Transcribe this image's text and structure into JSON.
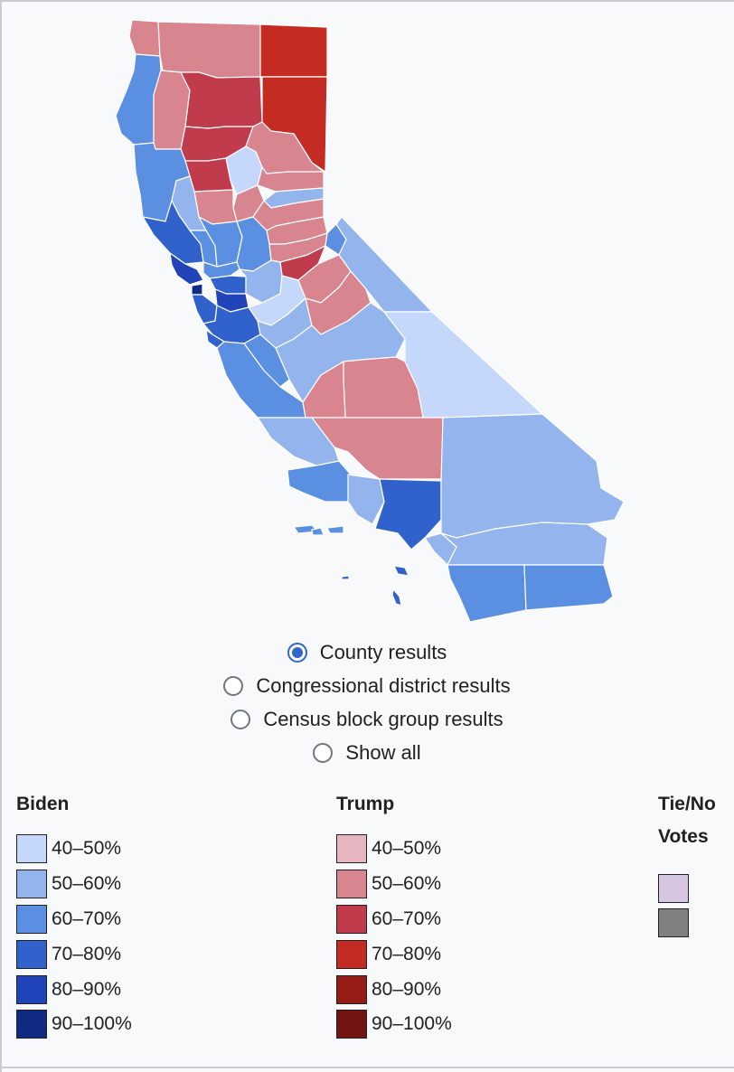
{
  "colors": {
    "biden_40_50": "#c5d8fb",
    "biden_50_60": "#93b4ec",
    "biden_60_70": "#5b8fe2",
    "biden_70_80": "#3162cc",
    "biden_80_90": "#2145b8",
    "biden_90_100": "#112b82",
    "trump_40_50": "#e8b6c0",
    "trump_50_60": "#d88590",
    "trump_60_70": "#c03b4c",
    "trump_70_80": "#c42b22",
    "trump_80_90": "#961d15",
    "trump_90_100": "#701512",
    "tie": "#d6c6df",
    "no_votes": "#808080"
  },
  "view_options": {
    "items": [
      {
        "label": "County results",
        "selected": true
      },
      {
        "label": "Congressional district results",
        "selected": false
      },
      {
        "label": "Census block group results",
        "selected": false
      },
      {
        "label": "Show all",
        "selected": false
      }
    ]
  },
  "legend": {
    "biden": {
      "title": "Biden",
      "items": [
        {
          "label": "40–50%",
          "color": "#c5d8fb"
        },
        {
          "label": "50–60%",
          "color": "#93b4ec"
        },
        {
          "label": "60–70%",
          "color": "#5b8fe2"
        },
        {
          "label": "70–80%",
          "color": "#3162cc"
        },
        {
          "label": "80–90%",
          "color": "#2145b8"
        },
        {
          "label": "90–100%",
          "color": "#112b82"
        }
      ]
    },
    "trump": {
      "title": "Trump",
      "items": [
        {
          "label": "40–50%",
          "color": "#e8b6c0"
        },
        {
          "label": "50–60%",
          "color": "#d88590"
        },
        {
          "label": "60–70%",
          "color": "#c03b4c"
        },
        {
          "label": "70–80%",
          "color": "#c42b22"
        },
        {
          "label": "80–90%",
          "color": "#961d15"
        },
        {
          "label": "90–100%",
          "color": "#701512"
        }
      ]
    },
    "tie": {
      "title_line1": "Tie/No",
      "title_line2": "Votes",
      "items": [
        {
          "color": "#d6c6df"
        },
        {
          "color": "#808080"
        }
      ]
    }
  }
}
